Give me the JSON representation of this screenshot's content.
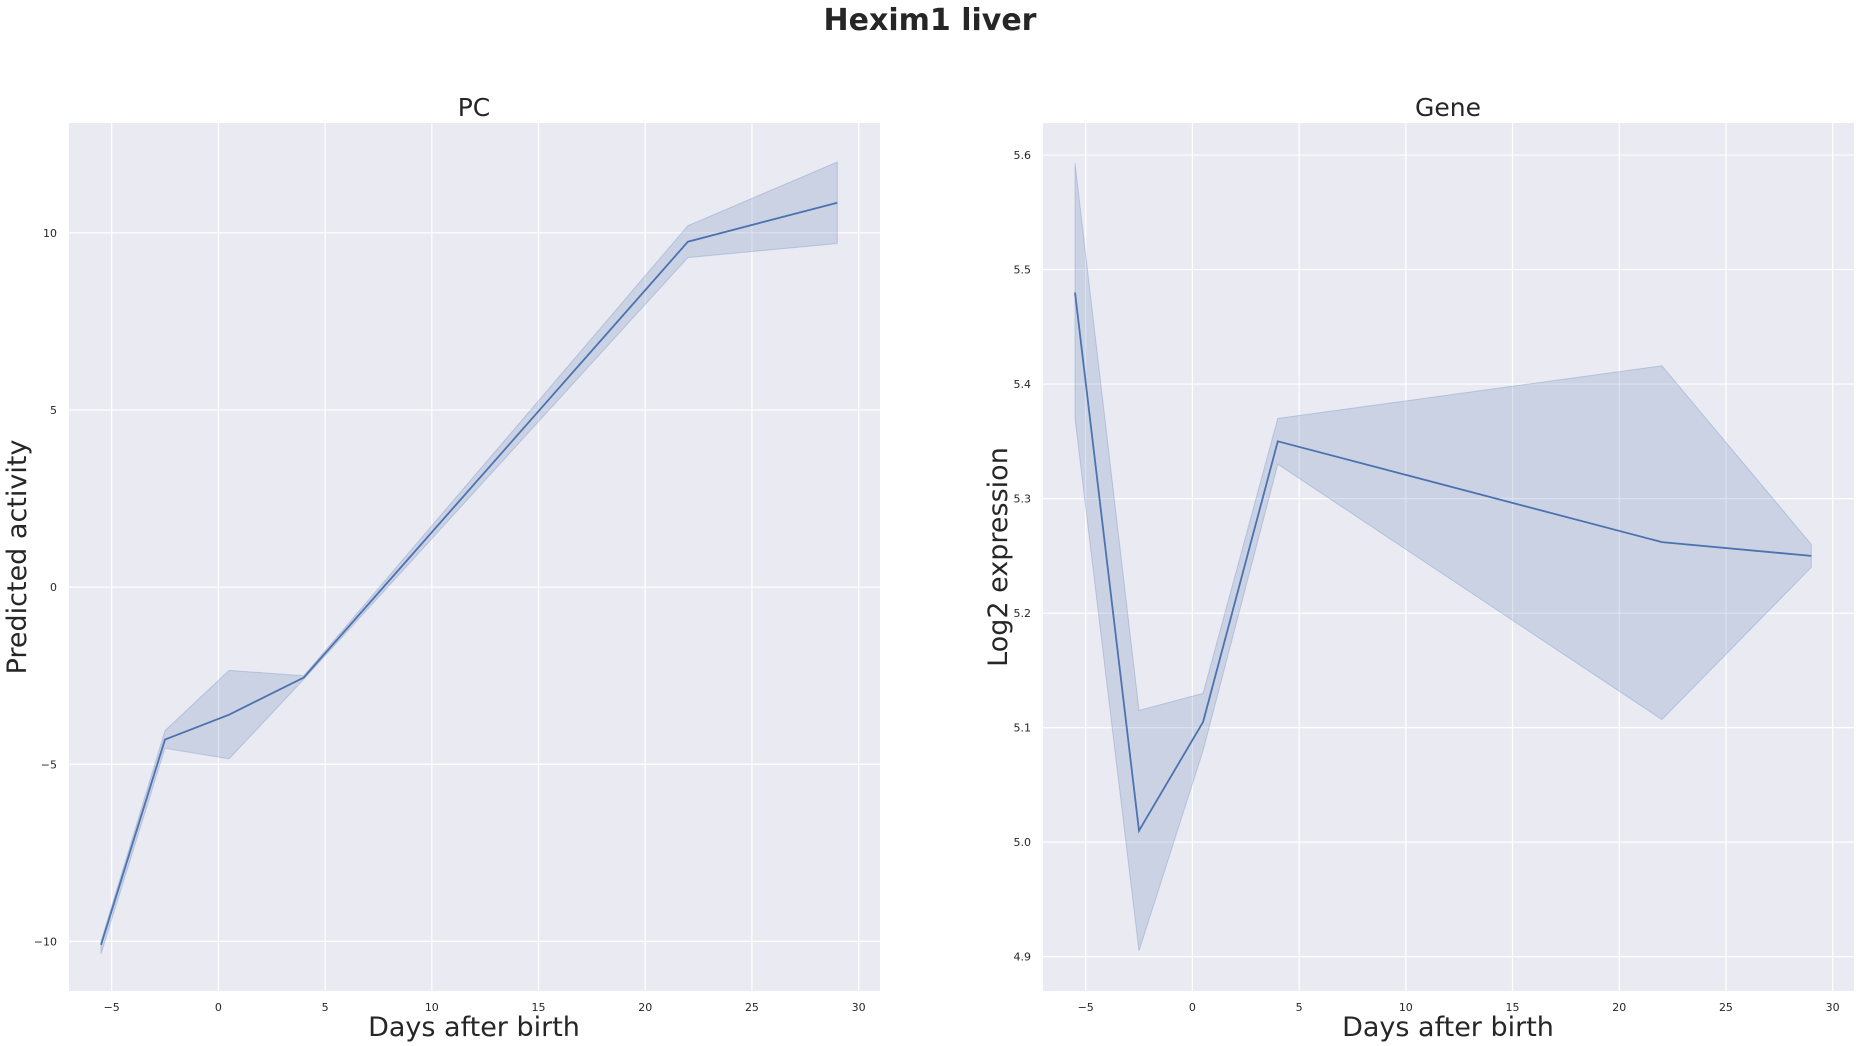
{
  "suptitle": "Hexim1 liver",
  "chart_data": [
    {
      "type": "line",
      "title": "PC",
      "xlabel": "Days after birth",
      "ylabel": "Predicted activity",
      "xlim": [
        -7,
        31
      ],
      "ylim": [
        -11.4,
        13.1
      ],
      "xticks": [
        -5,
        0,
        5,
        10,
        15,
        20,
        25,
        30
      ],
      "yticks": [
        -10,
        -5,
        0,
        5,
        10
      ],
      "grid": true,
      "color": "#4c72b0",
      "series": [
        {
          "x": [
            -5.5,
            -2.5,
            0.5,
            4,
            22,
            29
          ],
          "y": [
            -10.1,
            -4.3,
            -3.6,
            -2.55,
            9.75,
            10.85
          ],
          "lower": [
            -10.35,
            -4.55,
            -4.85,
            -2.6,
            9.3,
            9.7
          ],
          "upper": [
            -10.0,
            -4.05,
            -2.35,
            -2.5,
            10.2,
            12.0
          ]
        }
      ]
    },
    {
      "type": "line",
      "title": "Gene",
      "xlabel": "Days after birth",
      "ylabel": "Log2 expression",
      "xlim": [
        -7,
        31
      ],
      "ylim": [
        4.87,
        5.628
      ],
      "xticks": [
        -5,
        0,
        5,
        10,
        15,
        20,
        25,
        30
      ],
      "yticks": [
        4.9,
        5.0,
        5.1,
        5.2,
        5.3,
        5.4,
        5.5,
        5.6
      ],
      "grid": true,
      "color": "#4c72b0",
      "series": [
        {
          "x": [
            -5.5,
            -2.5,
            0.5,
            4,
            22,
            29
          ],
          "y": [
            5.48,
            5.01,
            5.105,
            5.35,
            5.262,
            5.25
          ],
          "lower": [
            5.37,
            4.905,
            5.08,
            5.33,
            5.107,
            5.24
          ],
          "upper": [
            5.593,
            5.115,
            5.13,
            5.37,
            5.416,
            5.26
          ]
        }
      ]
    }
  ]
}
